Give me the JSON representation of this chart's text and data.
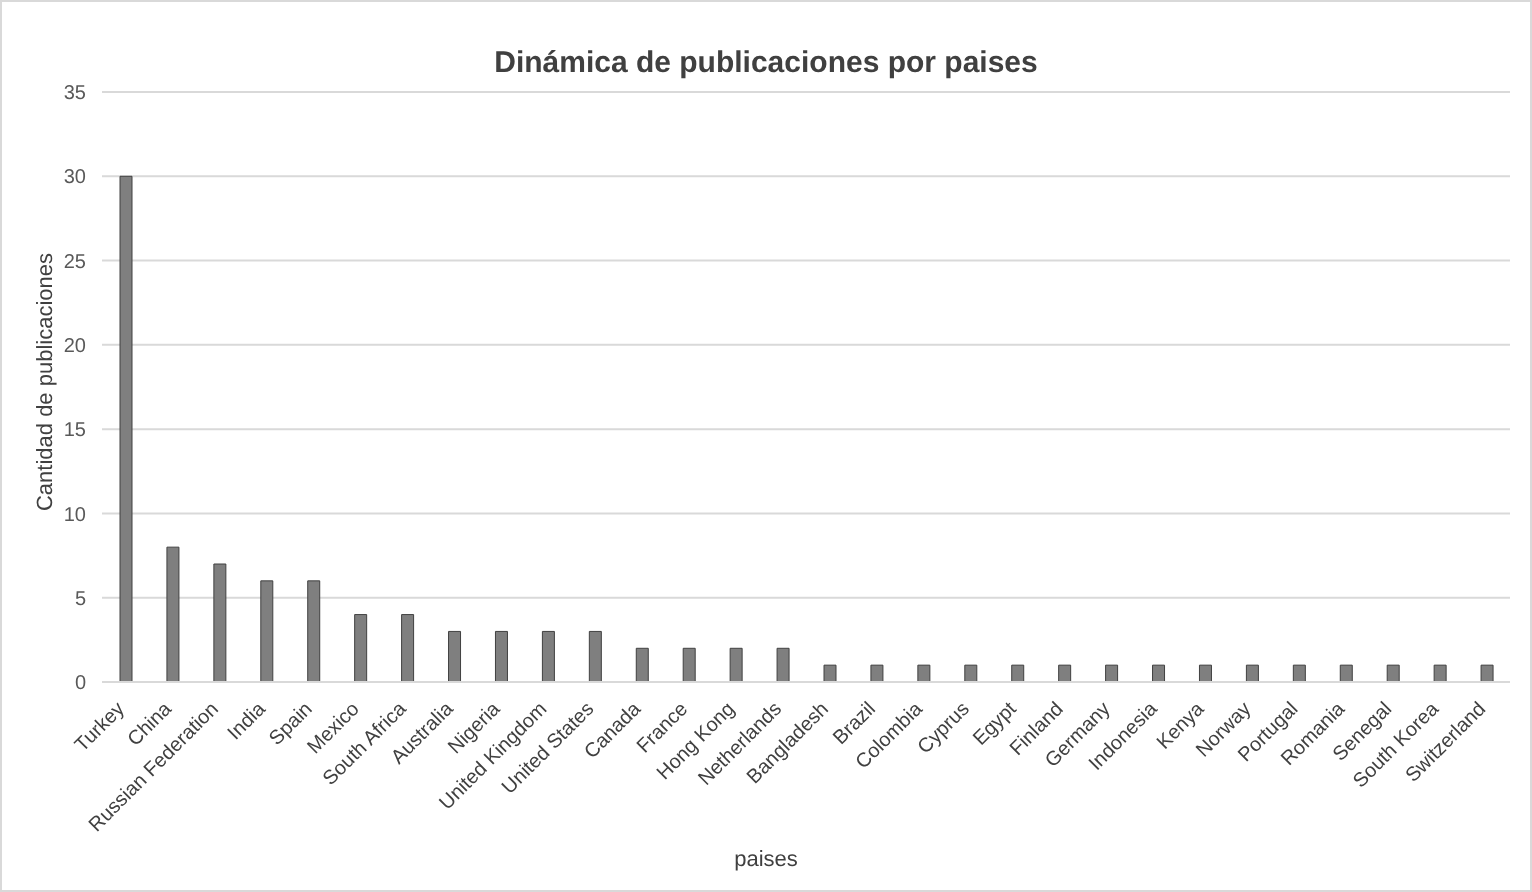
{
  "chart_data": {
    "type": "bar",
    "title": "Dinámica de publicaciones por paises",
    "xlabel": "paises",
    "ylabel": "Cantidad de publicaciones",
    "categories": [
      "Turkey",
      "China",
      "Russian Federation",
      "India",
      "Spain",
      "Mexico",
      "South Africa",
      "Australia",
      "Nigeria",
      "United Kingdom",
      "United States",
      "Canada",
      "France",
      "Hong Kong",
      "Netherlands",
      "Bangladesh",
      "Brazil",
      "Colombia",
      "Cyprus",
      "Egypt",
      "Finland",
      "Germany",
      "Indonesia",
      "Kenya",
      "Norway",
      "Portugal",
      "Romania",
      "Senegal",
      "South Korea",
      "Switzerland"
    ],
    "values": [
      30,
      8,
      7,
      6,
      6,
      4,
      4,
      3,
      3,
      3,
      3,
      2,
      2,
      2,
      2,
      1,
      1,
      1,
      1,
      1,
      1,
      1,
      1,
      1,
      1,
      1,
      1,
      1,
      1,
      1
    ],
    "color": "#7f7f7f",
    "ylim": [
      0,
      35
    ],
    "yticks": [
      0,
      5,
      10,
      15,
      20,
      25,
      30,
      35
    ],
    "grid": "y",
    "legend": false
  }
}
